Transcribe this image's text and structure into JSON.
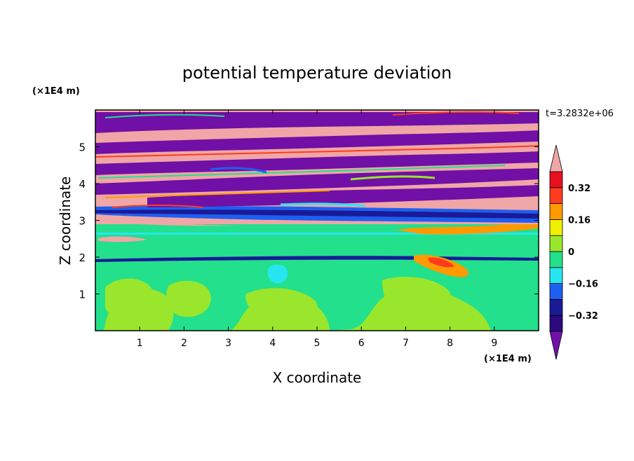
{
  "chart_data": {
    "type": "heatmap",
    "title": "potential temperature deviation",
    "xlabel": "X coordinate",
    "ylabel": "Z coordinate",
    "x_unit": "(×1E4 m)",
    "y_unit": "(×1E4 m)",
    "time_label": "t=3.2832e+06",
    "xlim": [
      0,
      10
    ],
    "ylim": [
      0,
      6
    ],
    "x_ticks": [
      "1",
      "2",
      "3",
      "4",
      "5",
      "6",
      "7",
      "8",
      "9"
    ],
    "y_ticks": [
      "1",
      "2",
      "3",
      "4",
      "5"
    ],
    "colorbar": {
      "levels": [
        -0.4,
        -0.32,
        -0.24,
        -0.16,
        -0.08,
        0,
        0.08,
        0.16,
        0.24,
        0.32,
        0.4
      ],
      "tick_labels": [
        "0.32",
        "0.16",
        "0",
        "−0.16",
        "−0.32"
      ],
      "tick_values": [
        0.32,
        0.16,
        0,
        -0.16,
        -0.32
      ],
      "colors": [
        "#2c0a7e",
        "#1a1a96",
        "#1e5ff0",
        "#27e6f0",
        "#22e08c",
        "#9ae62c",
        "#f0f000",
        "#ff9a00",
        "#ff3c1e",
        "#e8101e"
      ],
      "over_color": "#f0a6a6",
      "under_color": "#7010a6"
    }
  }
}
